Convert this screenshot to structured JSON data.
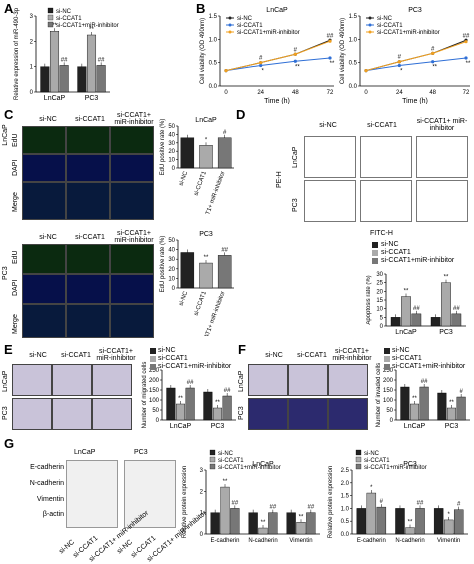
{
  "panels": {
    "A": "A",
    "B": "B",
    "C": "C",
    "D": "D",
    "E": "E",
    "F": "F",
    "G": "G"
  },
  "legend": {
    "si_nc": "si-NC",
    "si_ccat1": "si-CCAT1",
    "si_ccat1_mir": "si-CCAT1+miR-inhibitor"
  },
  "colors": {
    "nc": "#222222",
    "ccat1": "#aaaaaa",
    "mir": "#777777",
    "line_nc": "#222222",
    "line_ccat1": "#2f6fd6",
    "line_mir": "#f0a020"
  },
  "chart_data": [
    {
      "id": "A",
      "type": "bar",
      "categories": [
        "LnCaP",
        "PC3"
      ],
      "ylabel": "Relative expression of miR-490-3p",
      "ylim": [
        0,
        3
      ],
      "yticks": [
        0,
        1,
        2,
        3
      ],
      "series": [
        {
          "name": "si-NC",
          "values": [
            1.0,
            1.0
          ]
        },
        {
          "name": "si-CCAT1",
          "values": [
            2.4,
            2.25
          ]
        },
        {
          "name": "si-CCAT1+miR-inhibitor",
          "values": [
            1.05,
            1.05
          ]
        }
      ],
      "sig": [
        [
          "**",
          "##"
        ],
        [
          "**",
          "##"
        ]
      ]
    },
    {
      "id": "B1",
      "type": "line",
      "title": "LnCaP",
      "xlabel": "Time (h)",
      "ylabel": "Cell viability (OD 490nm)",
      "x": [
        0,
        24,
        48,
        72
      ],
      "ylim": [
        0,
        1.5
      ],
      "yticks": [
        "0.0",
        "0.5",
        "1.0",
        "1.5"
      ],
      "series": [
        {
          "name": "si-NC",
          "values": [
            0.33,
            0.5,
            0.68,
            0.98
          ]
        },
        {
          "name": "si-CCAT1",
          "values": [
            0.33,
            0.44,
            0.53,
            0.6
          ]
        },
        {
          "name": "si-CCAT1+miR-inhibitor",
          "values": [
            0.33,
            0.5,
            0.68,
            0.96
          ]
        }
      ],
      "sig": [
        "#",
        "#",
        "##"
      ],
      "sig2": [
        "*",
        "**",
        "**"
      ]
    },
    {
      "id": "B2",
      "type": "line",
      "title": "PC3",
      "xlabel": "Time (h)",
      "ylabel": "Cell viability (OD 490nm)",
      "x": [
        0,
        24,
        48,
        72
      ],
      "ylim": [
        0,
        1.5
      ],
      "yticks": [
        "0.0",
        "0.5",
        "1.0",
        "1.5"
      ],
      "series": [
        {
          "name": "si-NC",
          "values": [
            0.33,
            0.52,
            0.7,
            0.98
          ]
        },
        {
          "name": "si-CCAT1",
          "values": [
            0.33,
            0.44,
            0.52,
            0.6
          ]
        },
        {
          "name": "si-CCAT1+miR-inhibitor",
          "values": [
            0.33,
            0.52,
            0.7,
            0.95
          ]
        }
      ],
      "sig": [
        "#",
        "#",
        "##"
      ],
      "sig2": [
        "*",
        "**",
        "**"
      ]
    },
    {
      "id": "C1",
      "type": "bar",
      "title": "LnCaP",
      "ylabel": "EdU positive rate (%)",
      "categories": [
        "si-NC",
        "si-CCAT1",
        "si-CCAT1+ miR-inhibitor"
      ],
      "ylim": [
        0,
        50
      ],
      "yticks": [
        0,
        10,
        20,
        30,
        40,
        50
      ],
      "values": [
        36,
        27,
        36
      ],
      "sig": [
        "",
        "*",
        "#"
      ]
    },
    {
      "id": "C2",
      "type": "bar",
      "title": "PC3",
      "ylabel": "EdU positive rate (%)",
      "categories": [
        "si-NC",
        "si-CCAT1",
        "si-CCAT1+ miR-inhibitor"
      ],
      "ylim": [
        0,
        50
      ],
      "yticks": [
        0,
        10,
        20,
        30,
        40,
        50
      ],
      "values": [
        37,
        26,
        34
      ],
      "sig": [
        "",
        "**",
        "##"
      ]
    },
    {
      "id": "D",
      "type": "bar",
      "categories": [
        "LnCaP",
        "PC3"
      ],
      "ylabel": "Apoptosis rate (%)",
      "ylim": [
        0,
        30
      ],
      "yticks": [
        0,
        5,
        10,
        15,
        20,
        25,
        30
      ],
      "series": [
        {
          "name": "si-NC",
          "values": [
            5,
            5
          ]
        },
        {
          "name": "si-CCAT1",
          "values": [
            17,
            25
          ]
        },
        {
          "name": "si-CCAT1+miR-inhibitor",
          "values": [
            7,
            7
          ]
        }
      ],
      "sig": [
        [
          "**",
          "##"
        ],
        [
          "**",
          "##"
        ]
      ]
    },
    {
      "id": "E",
      "type": "bar",
      "categories": [
        "LnCaP",
        "PC3"
      ],
      "ylabel": "Number of migrated cells",
      "ylim": [
        0,
        250
      ],
      "yticks": [
        0,
        50,
        100,
        150,
        200,
        250
      ],
      "series": [
        {
          "name": "si-NC",
          "values": [
            160,
            140
          ]
        },
        {
          "name": "si-CCAT1",
          "values": [
            80,
            60
          ]
        },
        {
          "name": "si-CCAT1+miR-inhibitor",
          "values": [
            160,
            120
          ]
        }
      ],
      "sig": [
        [
          "**",
          "##"
        ],
        [
          "**",
          "##"
        ]
      ]
    },
    {
      "id": "F",
      "type": "bar",
      "categories": [
        "LnCaP",
        "PC3"
      ],
      "ylabel": "Number of invaded cells",
      "ylim": [
        0,
        250
      ],
      "yticks": [
        0,
        50,
        100,
        150,
        200,
        250
      ],
      "series": [
        {
          "name": "si-NC",
          "values": [
            165,
            135
          ]
        },
        {
          "name": "si-CCAT1",
          "values": [
            80,
            60
          ]
        },
        {
          "name": "si-CCAT1+miR-inhibitor",
          "values": [
            165,
            115
          ]
        }
      ],
      "sig": [
        [
          "**",
          "##"
        ],
        [
          "**",
          "#"
        ]
      ]
    },
    {
      "id": "G1",
      "type": "bar",
      "title": "LnCaP",
      "categories": [
        "E-cadherin",
        "N-cadherin",
        "Vimentin"
      ],
      "ylabel": "Relative protein expression",
      "ylim": [
        0,
        3
      ],
      "yticks": [
        0,
        1,
        2,
        3
      ],
      "series": [
        {
          "name": "si-NC",
          "values": [
            1.0,
            1.0,
            1.0
          ]
        },
        {
          "name": "si-CCAT1",
          "values": [
            2.2,
            0.28,
            0.55
          ]
        },
        {
          "name": "si-CCAT1+miR-inhibitor",
          "values": [
            1.2,
            1.0,
            1.0
          ]
        }
      ],
      "sig": [
        [
          "**",
          "##"
        ],
        [
          "**",
          "##"
        ],
        [
          "**",
          "##"
        ]
      ]
    },
    {
      "id": "G2",
      "type": "bar",
      "title": "PC3",
      "categories": [
        "E-cadherin",
        "N-cadherin",
        "Vimentin"
      ],
      "ylabel": "Relative protein expression",
      "ylim": [
        0,
        2.5
      ],
      "yticks": [
        "0.0",
        "0.5",
        "1.0",
        "1.5",
        "2.0",
        "2.5"
      ],
      "series": [
        {
          "name": "si-NC",
          "values": [
            1.0,
            1.0,
            1.0
          ]
        },
        {
          "name": "si-CCAT1",
          "values": [
            1.6,
            0.25,
            0.55
          ]
        },
        {
          "name": "si-CCAT1+miR-inhibitor",
          "values": [
            1.05,
            1.0,
            0.95
          ]
        }
      ],
      "sig": [
        [
          "*",
          "#"
        ],
        [
          "**",
          "##"
        ],
        [
          "*",
          "#"
        ]
      ]
    }
  ],
  "images": {
    "C_cols": [
      "si-NC",
      "si-CCAT1",
      "si-CCAT1+ miR-inhibitor"
    ],
    "C_rows": [
      "EdU",
      "DAPI",
      "Merge"
    ],
    "C_side1": "LnCaP",
    "C_side2": "PC3",
    "D_cols": [
      "si-NC",
      "si-CCAT1",
      "si-CCAT1+ miR-inhibitor"
    ],
    "D_rows": [
      "LnCaP",
      "PC3"
    ],
    "D_y": "PE-H",
    "D_x": "FITC-H",
    "E_cols": [
      "si-NC",
      "si-CCAT1",
      "si-CCAT1+ miR-inhibitor"
    ],
    "E_rows": [
      "LnCaP",
      "PC3"
    ],
    "F_cols": [
      "si-NC",
      "si-CCAT1",
      "si-CCAT1+ miR-inhibitor"
    ],
    "F_rows": [
      "LnCaP",
      "PC3"
    ],
    "G_cells": [
      "LnCaP",
      "PC3"
    ],
    "G_proteins": [
      "E-cadherin",
      "N-cadherin",
      "Vimentin",
      "β-actin"
    ],
    "G_lanes": [
      "si-NC",
      "si-CCAT1",
      "si-CCAT1+ miR-inhibitor"
    ]
  }
}
